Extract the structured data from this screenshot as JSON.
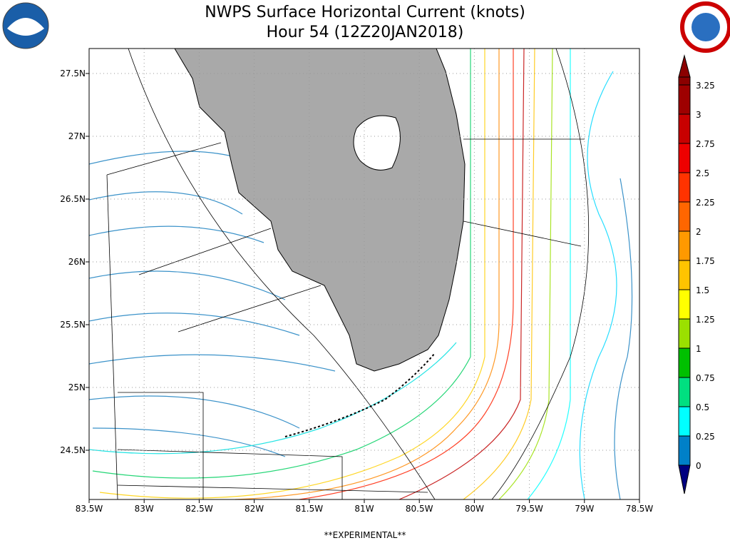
{
  "header": {
    "title": "NWPS Surface Horizontal Current (knots)",
    "subtitle": "Hour 54 (12Z20JAN2018)"
  },
  "map": {
    "lat_labels": [
      "27.5N",
      "27N",
      "26.5N",
      "26N",
      "25.5N",
      "25N",
      "24.5N"
    ],
    "lon_labels": [
      "83.5W",
      "83W",
      "82.5W",
      "82W",
      "81.5W",
      "81W",
      "80.5W",
      "80W",
      "79.5W",
      "79W",
      "78.5W"
    ]
  },
  "colorbar": {
    "labels": [
      "3.25",
      "3",
      "2.75",
      "2.5",
      "2.25",
      "2",
      "1.75",
      "1.5",
      "1.25",
      "1",
      "0.75",
      "0.5",
      "0.25",
      "0"
    ],
    "colors": [
      "#8b0000",
      "#9e0000",
      "#c80000",
      "#ee0000",
      "#ff3300",
      "#ff6600",
      "#ff9900",
      "#ffc400",
      "#ffff00",
      "#9be000",
      "#00c000",
      "#00e080",
      "#00ffff",
      "#0080c8",
      "#000080"
    ]
  },
  "footer": "**EXPERIMENTAL**"
}
